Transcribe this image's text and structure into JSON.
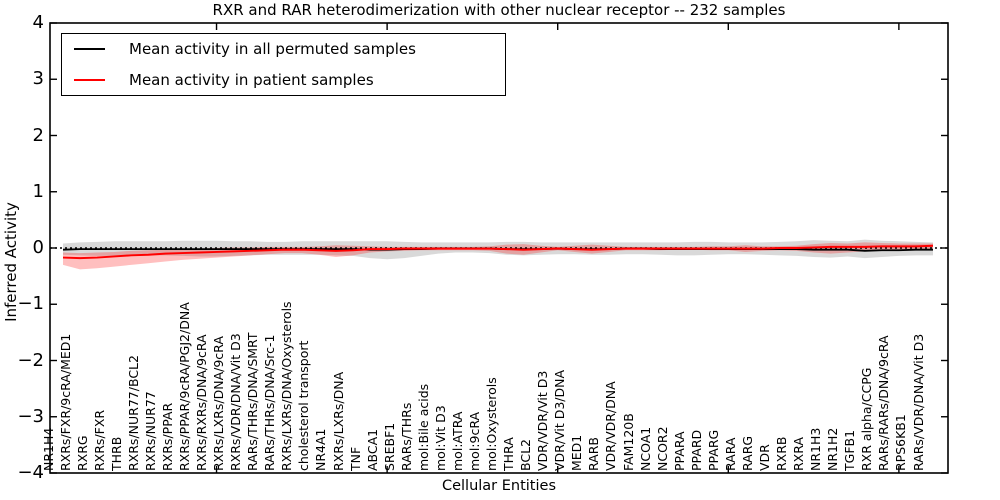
{
  "title": "RXR and RAR heterodimerization with other nuclear receptor -- 232 samples",
  "legend": {
    "entries": [
      {
        "label": "Mean activity in all permuted samples",
        "color": "#000000"
      },
      {
        "label": "Mean activity in patient samples",
        "color": "#ff0000"
      }
    ]
  },
  "axes": {
    "xlabel": "Cellular Entities",
    "ylabel": "Inferred Activity"
  },
  "chart_data": {
    "type": "line",
    "title": "RXR and RAR heterodimerization with other nuclear receptor -- 232 samples",
    "xlabel": "Cellular Entities",
    "ylabel": "Inferred Activity",
    "ylim": [
      -4,
      4
    ],
    "yticks": [
      4,
      3,
      2,
      1,
      0,
      -1,
      -2,
      -3,
      -4
    ],
    "xtick_positions": [
      10,
      20,
      30,
      40,
      50
    ],
    "grid": false,
    "legend_position": "upper left",
    "zero_reference_line": 0,
    "categories": [
      "NR1H4",
      "RXRs/FXR/9cRA/MED1",
      "RXRG",
      "RXRs/FXR",
      "THRB",
      "RXRs/NUR77/BCL2",
      "RXRs/NUR77",
      "RXRs/PPAR",
      "RXRs/PPAR/9cRA/PGJ2/DNA",
      "RXRs/RXRs/DNA/9cRA",
      "RXRs/LXRs/DNA/9cRA",
      "RXRs/VDR/DNA/Vit D3",
      "RARs/THRs/DNA/SMRT",
      "RARs/THRs/DNA/Src-1",
      "RXRs/LXRs/DNA/Oxysterols",
      "cholesterol transport",
      "NR4A1",
      "RXRs/LXRs/DNA",
      "TNF",
      "ABCA1",
      "SREBF1",
      "RARs/THRs",
      "mol:Bile acids",
      "mol:Vit D3",
      "mol:ATRA",
      "mol:9cRA",
      "mol:Oxysterols",
      "THRA",
      "BCL2",
      "VDR/VDR/Vit D3",
      "VDR/Vit D3/DNA",
      "MED1",
      "RARB",
      "VDR/VDR/DNA",
      "FAM120B",
      "NCOA1",
      "NCOR2",
      "PPARA",
      "PPARD",
      "PPARG",
      "RARA",
      "RARG",
      "VDR",
      "RXRB",
      "RXRA",
      "NR1H3",
      "NR1H2",
      "TGFB1",
      "RXR alpha/CCPG",
      "RARs/RARs/DNA/9cRA",
      "RPS6KB1",
      "RARs/VDR/DNA/Vit D3"
    ],
    "series": [
      {
        "name": "Mean activity in all permuted samples",
        "color": "#000000",
        "band_color": "#000000",
        "band_opacity": 0.15,
        "values": [
          -0.03,
          -0.02,
          -0.02,
          -0.02,
          -0.02,
          -0.02,
          -0.02,
          -0.02,
          -0.02,
          -0.02,
          -0.02,
          -0.02,
          -0.02,
          -0.02,
          -0.02,
          -0.02,
          -0.02,
          -0.02,
          -0.03,
          -0.03,
          -0.02,
          -0.02,
          -0.01,
          -0.01,
          -0.01,
          -0.01,
          -0.02,
          -0.02,
          -0.02,
          -0.01,
          -0.02,
          -0.02,
          -0.02,
          -0.01,
          -0.01,
          -0.02,
          -0.02,
          -0.02,
          -0.02,
          -0.02,
          -0.02,
          -0.02,
          -0.02,
          -0.02,
          -0.03,
          -0.03,
          -0.03,
          -0.05,
          -0.04,
          -0.04,
          -0.03,
          -0.03
        ],
        "band_upper": [
          0.08,
          0.1,
          0.11,
          0.12,
          0.12,
          0.12,
          0.12,
          0.13,
          0.13,
          0.13,
          0.12,
          0.12,
          0.11,
          0.11,
          0.12,
          0.12,
          0.12,
          0.12,
          0.12,
          0.12,
          0.11,
          0.1,
          0.1,
          0.1,
          0.1,
          0.1,
          0.11,
          0.11,
          0.1,
          0.1,
          0.1,
          0.1,
          0.1,
          0.1,
          0.1,
          0.1,
          0.1,
          0.11,
          0.11,
          0.1,
          0.1,
          0.1,
          0.11,
          0.12,
          0.14,
          0.13,
          0.12,
          0.15,
          0.13,
          0.12,
          0.11,
          0.1
        ],
        "band_lower": [
          -0.12,
          -0.13,
          -0.14,
          -0.14,
          -0.14,
          -0.13,
          -0.13,
          -0.14,
          -0.15,
          -0.15,
          -0.14,
          -0.13,
          -0.12,
          -0.12,
          -0.12,
          -0.12,
          -0.13,
          -0.14,
          -0.18,
          -0.2,
          -0.18,
          -0.14,
          -0.1,
          -0.08,
          -0.08,
          -0.09,
          -0.12,
          -0.13,
          -0.12,
          -0.11,
          -0.11,
          -0.12,
          -0.12,
          -0.11,
          -0.11,
          -0.12,
          -0.13,
          -0.13,
          -0.12,
          -0.11,
          -0.11,
          -0.12,
          -0.13,
          -0.14,
          -0.16,
          -0.17,
          -0.15,
          -0.18,
          -0.16,
          -0.14,
          -0.13,
          -0.13
        ]
      },
      {
        "name": "Mean activity in patient samples",
        "color": "#ff0000",
        "band_color": "#ff0000",
        "band_opacity": 0.25,
        "values": [
          -0.17,
          -0.18,
          -0.17,
          -0.15,
          -0.13,
          -0.12,
          -0.1,
          -0.09,
          -0.08,
          -0.07,
          -0.06,
          -0.05,
          -0.04,
          -0.03,
          -0.03,
          -0.04,
          -0.05,
          -0.04,
          -0.02,
          -0.02,
          -0.01,
          -0.01,
          -0.01,
          -0.01,
          -0.01,
          -0.01,
          -0.02,
          -0.03,
          -0.02,
          -0.01,
          -0.02,
          -0.03,
          -0.02,
          -0.01,
          -0.01,
          -0.01,
          -0.01,
          -0.01,
          -0.01,
          -0.01,
          -0.01,
          -0.01,
          0.0,
          0.0,
          0.01,
          0.02,
          0.02,
          0.02,
          0.03,
          0.03,
          0.03,
          0.04
        ],
        "band_upper": [
          -0.08,
          -0.09,
          -0.08,
          -0.07,
          -0.05,
          -0.04,
          -0.03,
          -0.02,
          -0.01,
          0.0,
          0.01,
          0.01,
          0.02,
          0.02,
          0.02,
          0.03,
          0.05,
          0.04,
          0.03,
          0.02,
          0.02,
          0.02,
          0.02,
          0.02,
          0.02,
          0.03,
          0.06,
          0.07,
          0.04,
          0.02,
          0.04,
          0.06,
          0.04,
          0.02,
          0.02,
          0.02,
          0.02,
          0.02,
          0.03,
          0.03,
          0.05,
          0.03,
          0.03,
          0.04,
          0.07,
          0.09,
          0.08,
          0.1,
          0.09,
          0.08,
          0.08,
          0.08
        ],
        "band_lower": [
          -0.3,
          -0.38,
          -0.36,
          -0.33,
          -0.3,
          -0.27,
          -0.24,
          -0.21,
          -0.19,
          -0.17,
          -0.15,
          -0.13,
          -0.11,
          -0.09,
          -0.09,
          -0.12,
          -0.16,
          -0.13,
          -0.08,
          -0.06,
          -0.05,
          -0.04,
          -0.04,
          -0.04,
          -0.04,
          -0.05,
          -0.1,
          -0.12,
          -0.08,
          -0.04,
          -0.07,
          -0.1,
          -0.07,
          -0.04,
          -0.04,
          -0.04,
          -0.03,
          -0.03,
          -0.04,
          -0.04,
          -0.07,
          -0.05,
          -0.04,
          -0.05,
          -0.08,
          -0.1,
          -0.08,
          -0.06,
          -0.05,
          -0.05,
          -0.04,
          -0.02
        ]
      }
    ]
  }
}
